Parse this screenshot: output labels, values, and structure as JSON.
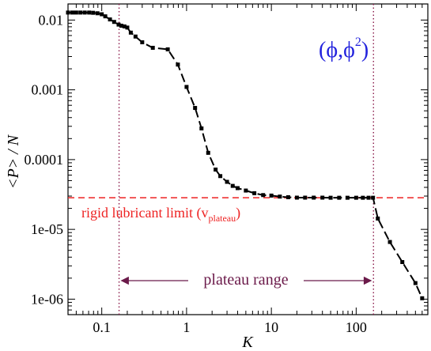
{
  "chart_data": {
    "type": "line",
    "title": "",
    "xlabel": "K",
    "ylabel": "<P> / N",
    "xscale": "log",
    "yscale": "log",
    "xlim": [
      0.04,
      700
    ],
    "ylim": [
      6e-07,
      0.017
    ],
    "grid": false,
    "x_ticks": [
      {
        "value": 0.1,
        "label": "0.1"
      },
      {
        "value": 1,
        "label": "1"
      },
      {
        "value": 10,
        "label": "10"
      },
      {
        "value": 100,
        "label": "100"
      }
    ],
    "y_ticks": [
      {
        "value": 0.01,
        "label": "0.01"
      },
      {
        "value": 0.001,
        "label": "0.001"
      },
      {
        "value": 0.0001,
        "label": "0.0001"
      },
      {
        "value": 1e-05,
        "label": "1e-05"
      },
      {
        "value": 1e-06,
        "label": "1e-06"
      }
    ],
    "series": [
      {
        "color": "#000000",
        "line_style": "dashed",
        "marker": "square",
        "x": [
          0.04,
          0.045,
          0.05,
          0.056,
          0.063,
          0.071,
          0.079,
          0.089,
          0.1,
          0.11,
          0.125,
          0.14,
          0.158,
          0.17,
          0.185,
          0.2,
          0.22,
          0.25,
          0.3,
          0.4,
          0.6,
          0.79,
          1.0,
          1.26,
          1.5,
          1.8,
          2.2,
          2.5,
          3.0,
          3.5,
          4.0,
          5.0,
          6.3,
          8.0,
          10.0,
          12.6,
          15.8,
          20.0,
          25,
          31.6,
          40,
          50,
          63,
          79,
          100,
          120,
          140,
          158,
          180,
          250,
          350,
          500,
          600
        ],
        "y": [
          0.0128,
          0.0128,
          0.0128,
          0.0128,
          0.0128,
          0.0128,
          0.0127,
          0.0125,
          0.0121,
          0.0113,
          0.0102,
          0.0094,
          0.0086,
          0.0083,
          0.0081,
          0.0078,
          0.0066,
          0.0058,
          0.0048,
          0.004,
          0.0038,
          0.0023,
          0.0011,
          0.00055,
          0.00028,
          0.000125,
          7.2e-05,
          5.8e-05,
          4.8e-05,
          4.2e-05,
          3.9e-05,
          3.6e-05,
          3.3e-05,
          3.1e-05,
          3.05e-05,
          2.95e-05,
          2.89e-05,
          2.85e-05,
          2.85e-05,
          2.85e-05,
          2.85e-05,
          2.84e-05,
          2.84e-05,
          2.84e-05,
          2.84e-05,
          2.84e-05,
          2.84e-05,
          2.84e-05,
          1.43e-05,
          6.6e-06,
          3.4e-06,
          1.7e-06,
          1.03e-06
        ]
      }
    ],
    "reference_lines": [
      {
        "orientation": "horizontal",
        "value": 2.84e-05,
        "color": "#ee2222",
        "style": "dashed"
      },
      {
        "orientation": "vertical",
        "value": 0.16,
        "color": "#8b1a4a",
        "style": "dotted"
      },
      {
        "orientation": "vertical",
        "value": 160,
        "color": "#8b1a4a",
        "style": "dotted"
      }
    ],
    "annotations": {
      "rigid_limit": {
        "text": "rigid lubricant limit (v",
        "subscript": "plateau",
        "suffix": ")",
        "color": "#ee2222"
      },
      "plateau_range": {
        "text": "plateau range",
        "color": "#6b1a4a",
        "arrow_from": 0.16,
        "arrow_to": 160
      },
      "model_label": {
        "text": "(ϕ,ϕ",
        "superscript": "2",
        "suffix": ")",
        "color": "#2222dd",
        "position": "top-right"
      }
    }
  }
}
